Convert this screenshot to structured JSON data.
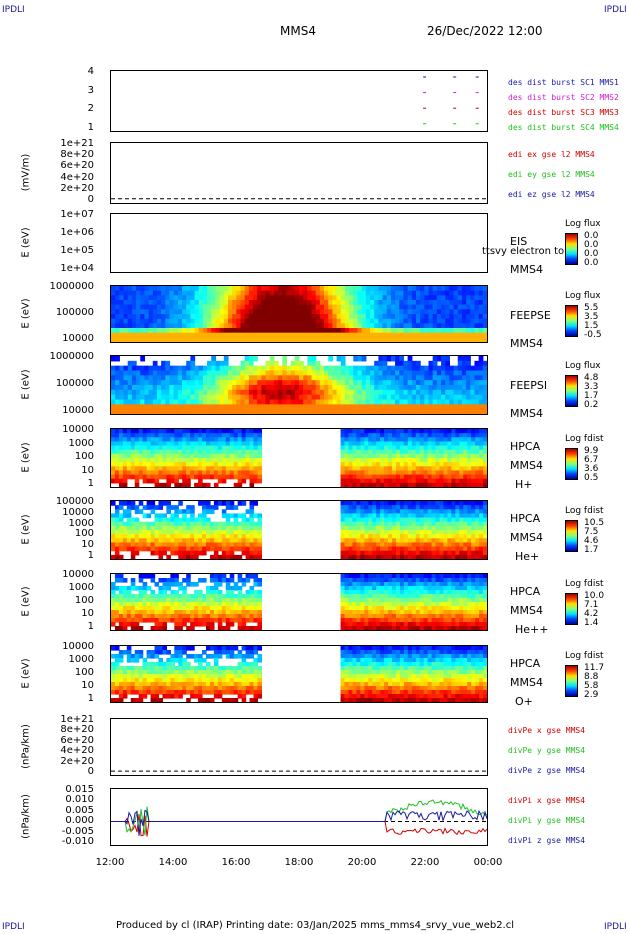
{
  "header": {
    "left_tag": "IPDLI",
    "right_tag": "IPDLI",
    "title": "MMS4",
    "datetime": "26/Dec/2022 12:00"
  },
  "footer": {
    "text": "Produced by cl (IRAP)   Printing date: 03/Jan/2025   mms_mms4_srvy_vue_web2.cl"
  },
  "x_ticks": [
    "12:00",
    "14:00",
    "16:00",
    "18:00",
    "20:00",
    "22:00",
    "00:00"
  ],
  "panels": [
    {
      "id": "p1",
      "ylabel": "",
      "yticks": [
        "4",
        "3",
        "2",
        "1"
      ],
      "labels": [
        {
          "text": "des dist burst SC1 MMS1",
          "color": "#1a1aa0"
        },
        {
          "text": "des dist burst SC2 MMS2",
          "color": "#d020d0"
        },
        {
          "text": "des dist burst SC3 MMS3",
          "color": "#d00000"
        },
        {
          "text": "des dist burst SC4 MMS4",
          "color": "#20c020"
        }
      ]
    },
    {
      "id": "p2",
      "ylabel": "(mV/m)",
      "yticks": [
        "1e+21",
        "8e+20",
        "6e+20",
        "4e+20",
        "2e+20",
        "0"
      ],
      "labels": [
        {
          "text": "edi ex gse l2 MMS4",
          "color": "#d00000"
        },
        {
          "text": "edi ey gse l2 MMS4",
          "color": "#20c020"
        },
        {
          "text": "edi ez gse l2 MMS4",
          "color": "#1a1aa0"
        }
      ]
    },
    {
      "id": "p3",
      "ylabel": "E (eV)",
      "yticks": [
        "1e+07",
        "1e+06",
        "1e+05",
        "1e+04"
      ],
      "inst": [
        "EIS",
        "MMS4"
      ],
      "overlay": "ttsvy electron to",
      "cb": {
        "title": "Log flux",
        "ticks": [
          "0.0",
          "0.0",
          "0.0",
          "0.0"
        ]
      }
    },
    {
      "id": "p4",
      "ylabel": "E (eV)",
      "yticks": [
        "1000000",
        "100000",
        "10000"
      ],
      "inst": [
        "FEEPSE",
        "MMS4"
      ],
      "cb": {
        "title": "Log flux",
        "ticks": [
          "5.5",
          "3.5",
          "1.5",
          "-0.5"
        ]
      }
    },
    {
      "id": "p5",
      "ylabel": "E (eV)",
      "yticks": [
        "1000000",
        "100000",
        "10000"
      ],
      "inst": [
        "FEEPSI",
        "MMS4"
      ],
      "cb": {
        "title": "Log flux",
        "ticks": [
          "4.8",
          "3.3",
          "1.7",
          "0.2"
        ]
      }
    },
    {
      "id": "p6",
      "ylabel": "E (eV)",
      "yticks": [
        "10000",
        "1000",
        "100",
        "10",
        "1"
      ],
      "inst": [
        "HPCA",
        "MMS4",
        "H+"
      ],
      "cb": {
        "title": "Log fdist",
        "ticks": [
          "9.9",
          "6.7",
          "3.6",
          "0.5"
        ]
      }
    },
    {
      "id": "p7",
      "ylabel": "E (eV)",
      "yticks": [
        "100000",
        "10000",
        "1000",
        "100",
        "10",
        "1"
      ],
      "inst": [
        "HPCA",
        "MMS4",
        "He+"
      ],
      "cb": {
        "title": "Log fdist",
        "ticks": [
          "10.5",
          "7.5",
          "4.6",
          "1.7"
        ]
      }
    },
    {
      "id": "p8",
      "ylabel": "E (eV)",
      "yticks": [
        "10000",
        "1000",
        "100",
        "10",
        "1"
      ],
      "inst": [
        "HPCA",
        "MMS4",
        "He++"
      ],
      "cb": {
        "title": "Log fdist",
        "ticks": [
          "10.0",
          "7.1",
          "4.2",
          "1.4"
        ]
      }
    },
    {
      "id": "p9",
      "ylabel": "E (eV)",
      "yticks": [
        "10000",
        "1000",
        "100",
        "10",
        "1"
      ],
      "inst": [
        "HPCA",
        "MMS4",
        "O+"
      ],
      "cb": {
        "title": "Log fdist",
        "ticks": [
          "11.7",
          "8.8",
          "5.8",
          "2.9"
        ]
      }
    },
    {
      "id": "p10",
      "ylabel": "(nPa/km)",
      "yticks": [
        "1e+21",
        "8e+20",
        "6e+20",
        "4e+20",
        "2e+20",
        "0"
      ],
      "labels": [
        {
          "text": "divPe x gse MMS4",
          "color": "#d00000"
        },
        {
          "text": "divPe y gse MMS4",
          "color": "#20c020"
        },
        {
          "text": "divPe z gse MMS4",
          "color": "#1a1aa0"
        }
      ]
    },
    {
      "id": "p11",
      "ylabel": "(nPa/km)",
      "yticks": [
        "0.015",
        "0.010",
        "0.005",
        "0.000",
        "-0.005",
        "-0.010"
      ],
      "labels": [
        {
          "text": "divPi x gse MMS4",
          "color": "#d00000"
        },
        {
          "text": "divPi y gse MMS4",
          "color": "#20c020"
        },
        {
          "text": "divPi z gse MMS4",
          "color": "#1a1aa0"
        }
      ]
    }
  ],
  "chart_data": {
    "type": "heatmap",
    "x_range": [
      "2022-12-26 12:00",
      "2022-12-27 00:00"
    ],
    "data_gap_hpca": [
      "2022-12-26 16:45",
      "2022-12-26 19:25"
    ],
    "divPi_ylim": [
      -0.012,
      0.015
    ]
  }
}
